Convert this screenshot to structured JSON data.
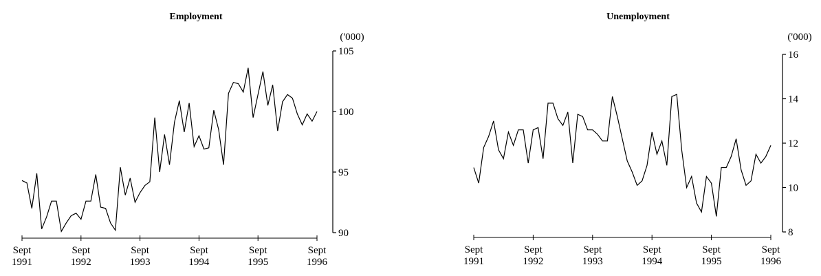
{
  "chart_data": [
    {
      "type": "line",
      "title": "Employment",
      "unit": "('000)",
      "ylim": [
        90,
        105
      ],
      "yticks": [
        90,
        95,
        100,
        105
      ],
      "xticks": [
        {
          "line1": "Sept",
          "line2": "1991"
        },
        {
          "line1": "Sept",
          "line2": "1992"
        },
        {
          "line1": "Sept",
          "line2": "1993"
        },
        {
          "line1": "Sept",
          "line2": "1994"
        },
        {
          "line1": "Sept",
          "line2": "1995"
        },
        {
          "line1": "Sept",
          "line2": "1996"
        }
      ],
      "x_start": "1991-09",
      "x_end": "1996-09",
      "series": [
        {
          "values": [
            94.3,
            94.1,
            92.0,
            94.9,
            90.3,
            91.3,
            92.6,
            92.6,
            90.1,
            90.8,
            91.4,
            91.6,
            91.1,
            92.6,
            92.6,
            94.8,
            92.1,
            92.0,
            90.8,
            90.2,
            95.4,
            93.1,
            94.5,
            92.5,
            93.3,
            93.9,
            94.2,
            99.5,
            95.0,
            98.1,
            95.6,
            99.1,
            100.9,
            98.3,
            100.7,
            97.1,
            98.0,
            96.9,
            97.0,
            100.1,
            98.5,
            95.6,
            101.5,
            102.4,
            102.3,
            101.6,
            103.6,
            99.5,
            101.4,
            103.3,
            100.5,
            102.2,
            98.4,
            100.8,
            101.4,
            101.1,
            99.8,
            98.9,
            99.8,
            99.2,
            100.0
          ]
        }
      ]
    },
    {
      "type": "line",
      "title": "Unemployment",
      "unit": "('000)",
      "ylim": [
        8,
        16
      ],
      "yticks": [
        8,
        10,
        12,
        14,
        16
      ],
      "xticks": [
        {
          "line1": "Sept",
          "line2": "1991"
        },
        {
          "line1": "Sept",
          "line2": "1992"
        },
        {
          "line1": "Sept",
          "line2": "1993"
        },
        {
          "line1": "Sept",
          "line2": "1994"
        },
        {
          "line1": "Sept",
          "line2": "1995"
        },
        {
          "line1": "Sept",
          "line2": "1996"
        }
      ],
      "x_start": "1991-09",
      "x_end": "1996-09",
      "series": [
        {
          "values": [
            10.9,
            10.2,
            11.8,
            12.3,
            13.0,
            11.7,
            11.3,
            12.5,
            11.9,
            12.6,
            12.6,
            11.1,
            12.6,
            12.7,
            11.3,
            13.8,
            13.8,
            13.1,
            12.8,
            13.4,
            11.1,
            13.3,
            13.2,
            12.6,
            12.6,
            12.4,
            12.1,
            12.1,
            14.1,
            13.2,
            12.2,
            11.2,
            10.7,
            10.1,
            10.3,
            11.0,
            12.5,
            11.5,
            12.1,
            11.0,
            14.1,
            14.2,
            11.7,
            10.0,
            10.5,
            9.3,
            8.9,
            10.5,
            10.2,
            8.7,
            10.9,
            10.9,
            11.4,
            12.2,
            10.8,
            10.1,
            10.3,
            11.5,
            11.1,
            11.4,
            11.9
          ]
        }
      ]
    }
  ]
}
